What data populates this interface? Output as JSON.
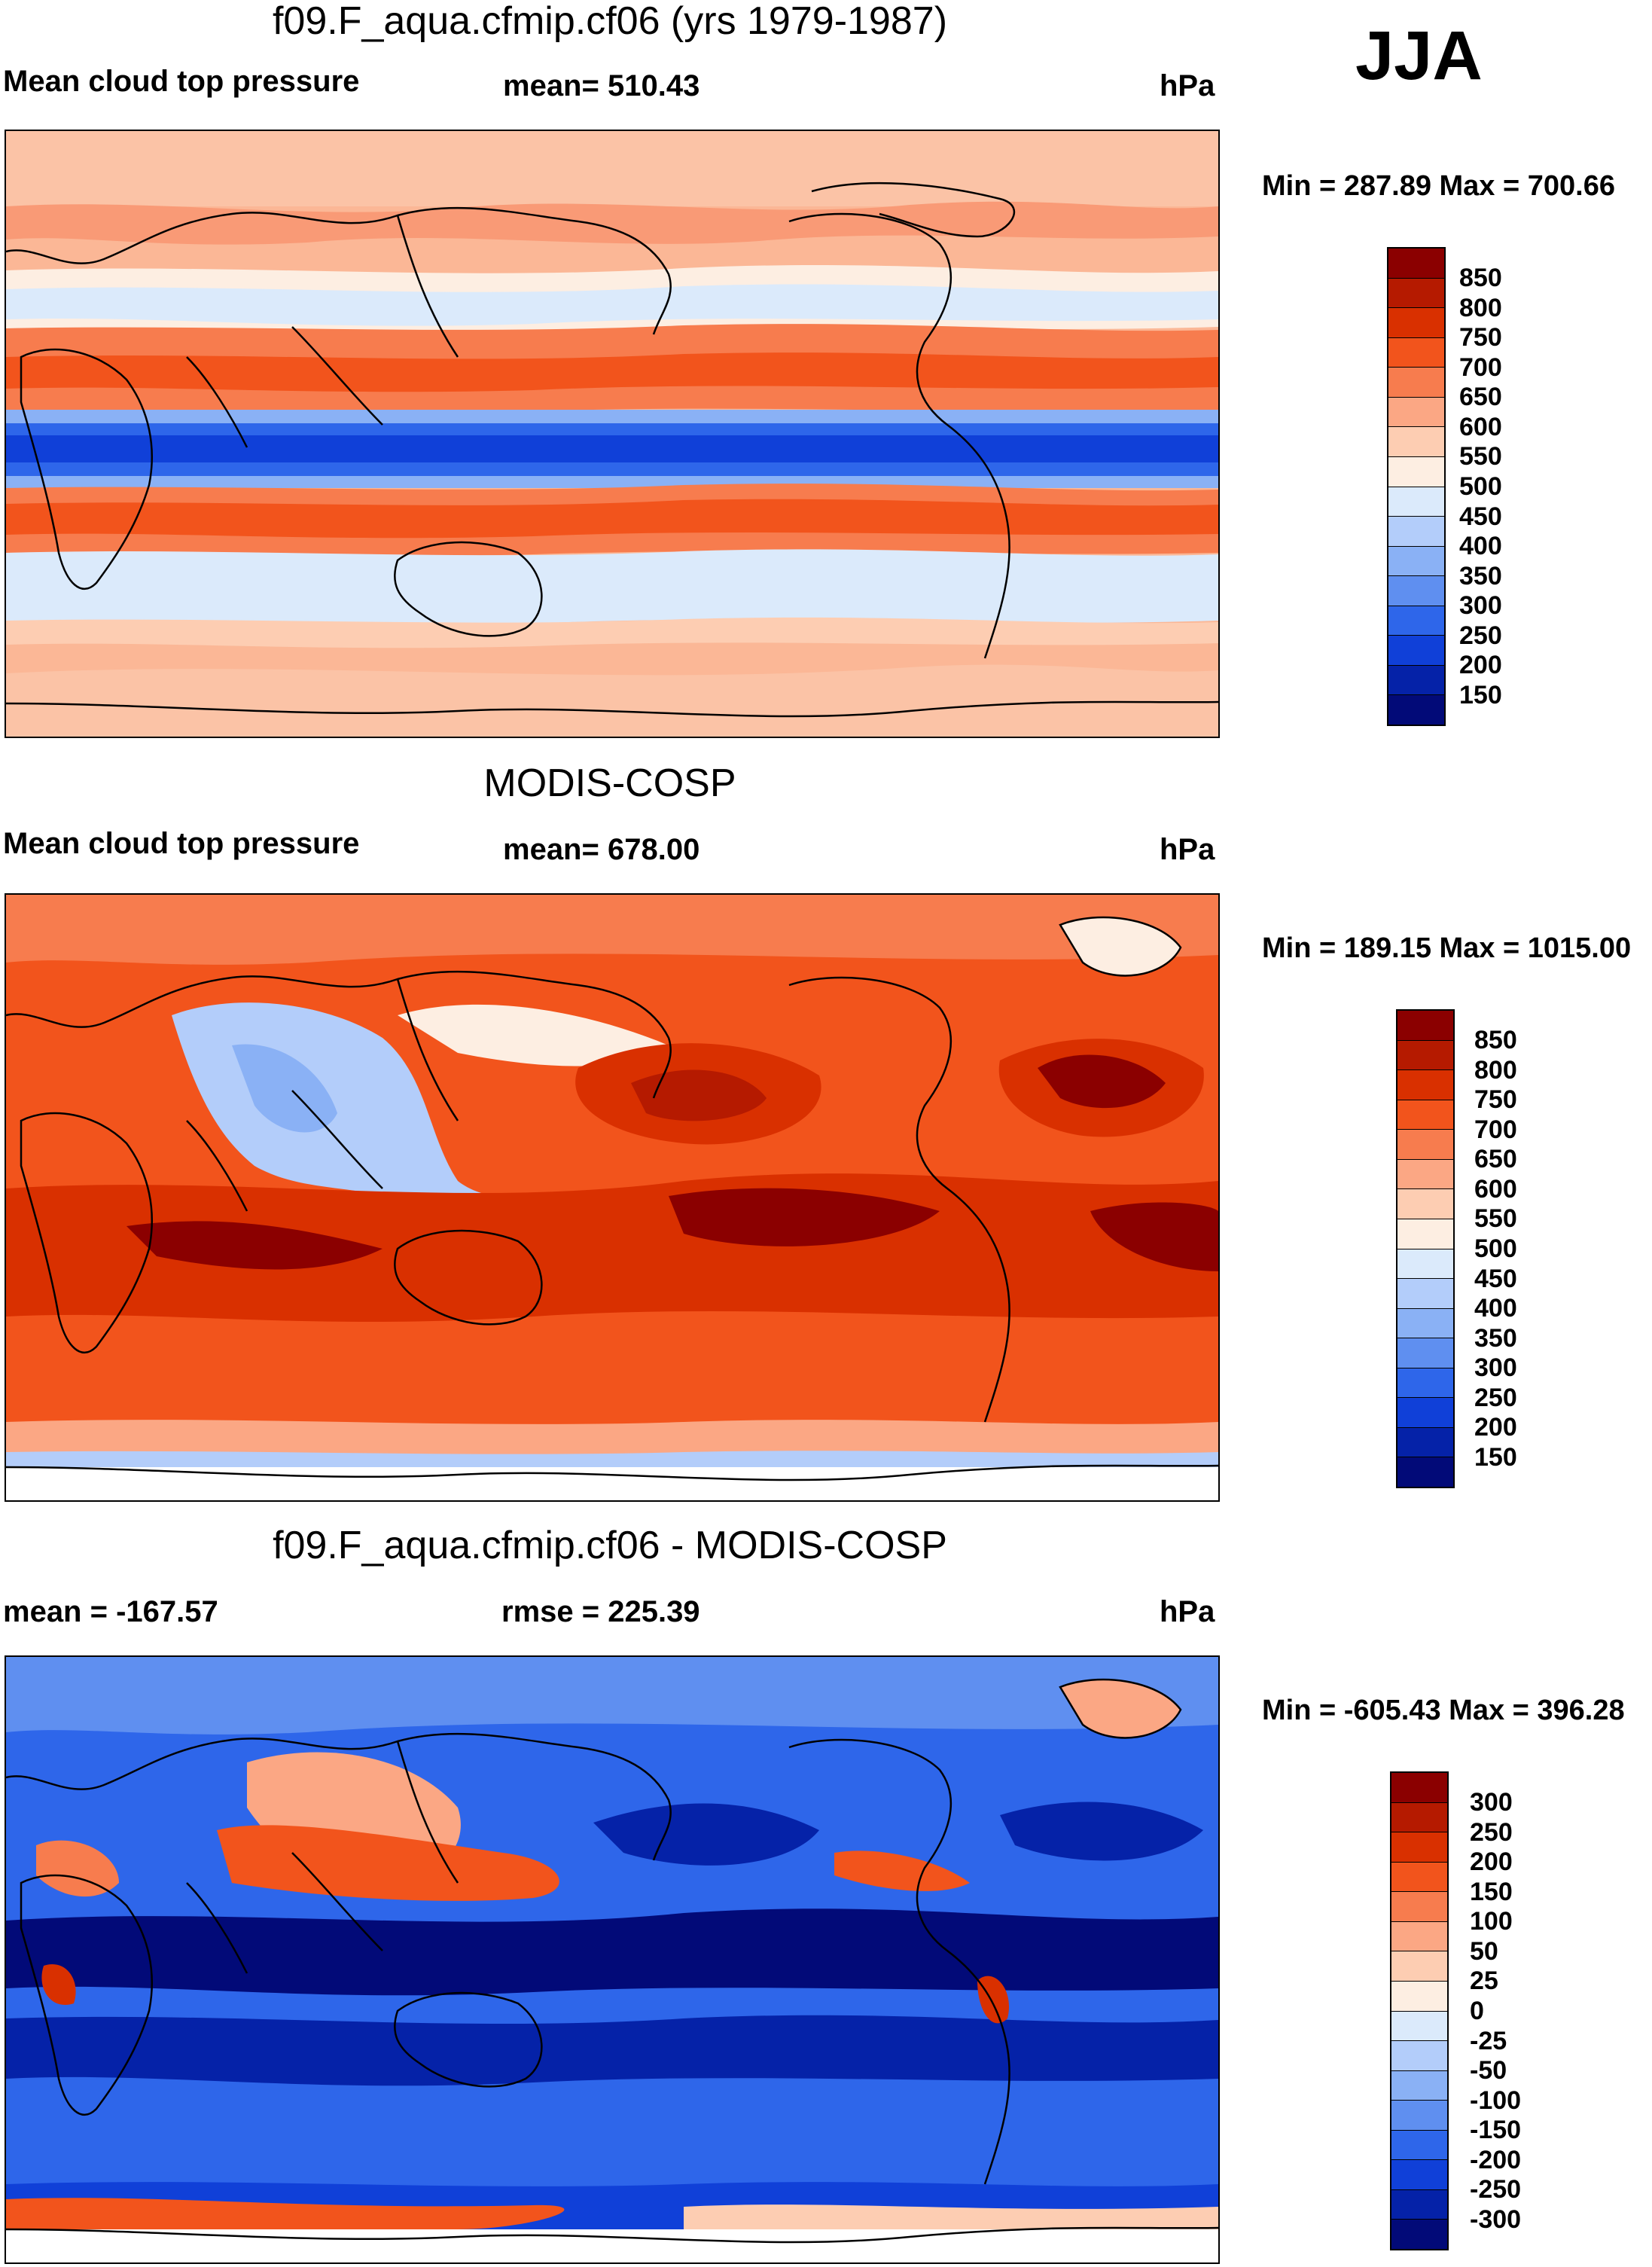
{
  "season": "JJA",
  "panels": [
    {
      "title": "f09.F_aqua.cfmip.cf06 (yrs 1979-1987)",
      "left": "Mean cloud top pressure",
      "center": "mean= 510.43",
      "units": "hPa",
      "minmax": "Min = 287.89 Max = 700.66",
      "labels": [
        "850",
        "800",
        "750",
        "700",
        "650",
        "600",
        "550",
        "500",
        "450",
        "400",
        "350",
        "300",
        "250",
        "200",
        "150"
      ],
      "colors": [
        "#8b0000",
        "#b51a00",
        "#d93000",
        "#f2541c",
        "#f77c4e",
        "#fba784",
        "#fdcdb2",
        "#fdeee2",
        "#dbeafb",
        "#b3cdfa",
        "#8ab1f5",
        "#5f8ff0",
        "#2e66ea",
        "#1040d8",
        "#0522a8",
        "#020a78"
      ]
    },
    {
      "title": "MODIS-COSP",
      "left": "Mean cloud top pressure",
      "center": "mean= 678.00",
      "units": "hPa",
      "minmax": "Min = 189.15 Max = 1015.00",
      "labels": [
        "850",
        "800",
        "750",
        "700",
        "650",
        "600",
        "550",
        "500",
        "450",
        "400",
        "350",
        "300",
        "250",
        "200",
        "150"
      ],
      "colors": [
        "#8b0000",
        "#b51a00",
        "#d93000",
        "#f2541c",
        "#f77c4e",
        "#fba784",
        "#fdcdb2",
        "#fdeee2",
        "#dbeafb",
        "#b3cdfa",
        "#8ab1f5",
        "#5f8ff0",
        "#2e66ea",
        "#1040d8",
        "#0522a8",
        "#020a78"
      ]
    },
    {
      "title": "f09.F_aqua.cfmip.cf06 - MODIS-COSP",
      "left": "mean = -167.57",
      "center": "rmse = 225.39",
      "units": "hPa",
      "minmax": "Min = -605.43 Max = 396.28",
      "labels": [
        "300",
        "250",
        "200",
        "150",
        "100",
        "50",
        "25",
        "0",
        "-25",
        "-50",
        "-100",
        "-150",
        "-200",
        "-250",
        "-300"
      ],
      "colors": [
        "#8b0000",
        "#b51a00",
        "#d93000",
        "#f2541c",
        "#f77c4e",
        "#fba784",
        "#fdcdb2",
        "#fdeee2",
        "#dbeafb",
        "#b3cdfa",
        "#8ab1f5",
        "#5f8ff0",
        "#2e66ea",
        "#1040d8",
        "#0522a8",
        "#020a78"
      ]
    }
  ]
}
